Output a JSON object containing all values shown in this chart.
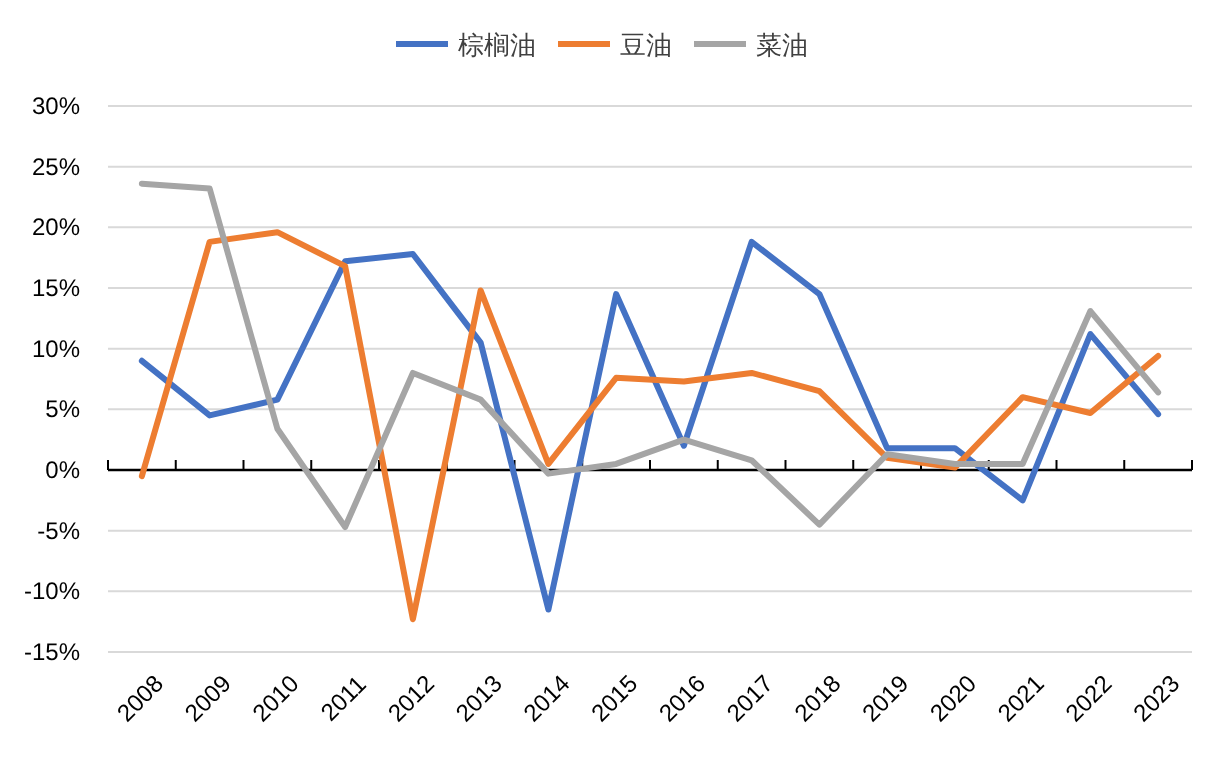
{
  "chart_data": {
    "type": "line",
    "legend": "top",
    "grid": "y",
    "marker": "none",
    "line_style": "solid",
    "categories": [
      "2008",
      "2009",
      "2010",
      "2011",
      "2012",
      "2013",
      "2014",
      "2015",
      "2016",
      "2017",
      "2018",
      "2019",
      "2020",
      "2021",
      "2022",
      "2023"
    ],
    "ylim": [
      -15,
      30
    ],
    "yticks": [
      {
        "value": -15,
        "label": "-15%"
      },
      {
        "value": -10,
        "label": "-10%"
      },
      {
        "value": -5,
        "label": "-5%"
      },
      {
        "value": 0,
        "label": "0%"
      },
      {
        "value": 5,
        "label": "5%"
      },
      {
        "value": 10,
        "label": "10%"
      },
      {
        "value": 15,
        "label": "15%"
      },
      {
        "value": 20,
        "label": "20%"
      },
      {
        "value": 25,
        "label": "25%"
      },
      {
        "value": 30,
        "label": "30%"
      }
    ],
    "series": [
      {
        "name": "棕榈油",
        "color": "#4472c4",
        "values": [
          9,
          4.5,
          5.8,
          17.2,
          17.8,
          10.5,
          -11.5,
          14.5,
          2,
          18.8,
          14.5,
          1.8,
          1.8,
          -2.5,
          11.2,
          4.6
        ]
      },
      {
        "name": "豆油",
        "color": "#ed7d31",
        "values": [
          -0.5,
          18.8,
          19.6,
          16.8,
          -12.3,
          14.8,
          0.5,
          7.6,
          7.3,
          8,
          6.5,
          1,
          0.2,
          6,
          4.7,
          9.4
        ]
      },
      {
        "name": "菜油",
        "color": "#a5a5a5",
        "values": [
          23.6,
          23.2,
          3.4,
          -4.7,
          8,
          5.8,
          -0.3,
          0.5,
          2.5,
          0.8,
          -4.5,
          1.3,
          0.5,
          0.5,
          13.1,
          6.4
        ]
      }
    ]
  }
}
